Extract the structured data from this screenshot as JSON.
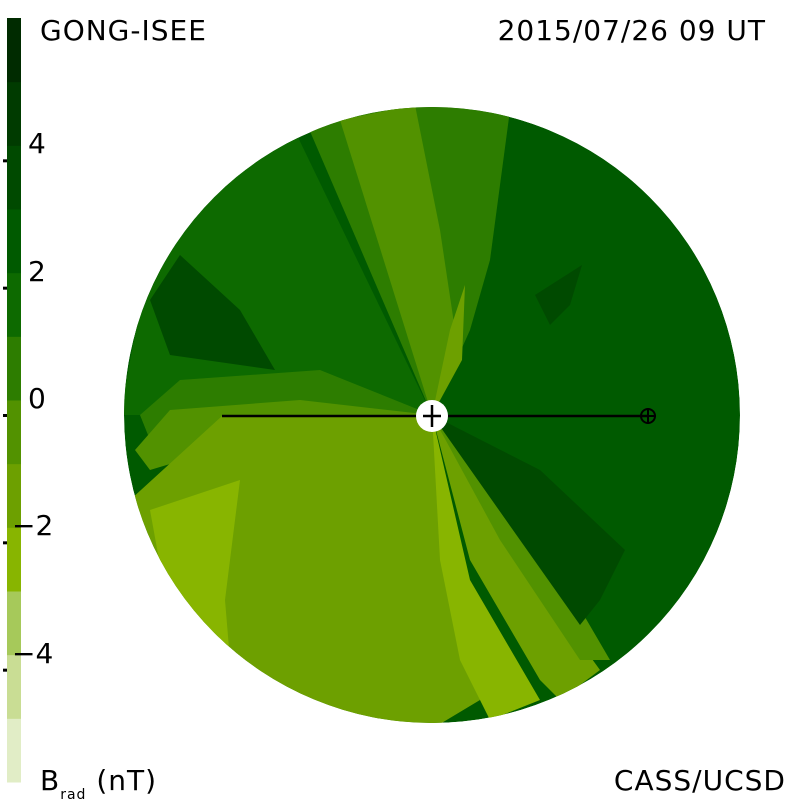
{
  "header": {
    "left_text": "GONG-ISEE",
    "right_text": "2015/07/26 09 UT"
  },
  "footer": {
    "right_text": "CASS/UCSD"
  },
  "colorbar": {
    "label_main": "B",
    "label_sub": "rad",
    "label_unit": " (nT)",
    "tick_labels": [
      "4",
      "2",
      "0",
      "−2",
      "−4"
    ],
    "tick_values": [
      4,
      2,
      0,
      -2,
      -4
    ],
    "range": [
      -6,
      6
    ],
    "colors": [
      "#e1edc6",
      "#c9dd94",
      "#a6c95a",
      "#88b500",
      "#6da000",
      "#529200",
      "#2d7d00",
      "#0d6a00",
      "#005a00",
      "#004a00",
      "#003b00",
      "#002b00"
    ]
  },
  "chart_data": {
    "type": "heatmap",
    "title": "GONG-ISEE 2015/07/26 09 UT",
    "colorbar_label": "Brad (nT)",
    "colorbar_range": [
      -6,
      6
    ],
    "levels": [
      -6,
      -5,
      -4,
      -3,
      -2,
      -1,
      0,
      1,
      2,
      3,
      4,
      5,
      6
    ],
    "description_regions": [
      {
        "sector": "right hemisphere (earth side)",
        "value": 2
      },
      {
        "sector": "lower-right wedge",
        "value": 3
      },
      {
        "sector": "upper-left lobe",
        "value": 3
      },
      {
        "sector": "upper-left background",
        "value": 1.5
      },
      {
        "sector": "lower-left hemisphere",
        "value": -2
      },
      {
        "sector": "far lower-left edge",
        "value": -3
      },
      {
        "sector": "lower-center tongue",
        "value": -3
      }
    ],
    "markers": [
      {
        "name": "sun",
        "symbol": "circle-plus",
        "position": "center"
      },
      {
        "name": "earth",
        "symbol": "circle-plus-small",
        "position": "right"
      }
    ]
  }
}
